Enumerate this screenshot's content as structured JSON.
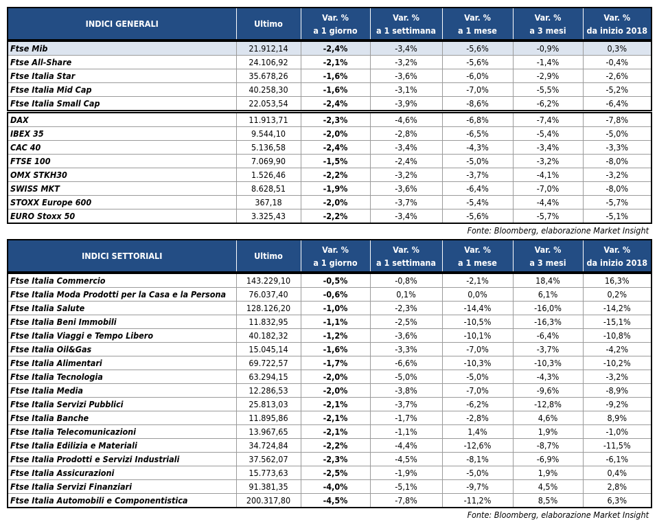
{
  "table1": {
    "header": [
      [
        "INDICI GENERALI"
      ],
      [
        "Ultimo"
      ],
      [
        "Var. %",
        "a 1 giorno"
      ],
      [
        "Var. %",
        "a 1 settimana"
      ],
      [
        "Var. %",
        "a 1 mese"
      ],
      [
        "Var. %",
        "a 3 mesi"
      ],
      [
        "Var. %",
        "da inizio 2018"
      ]
    ],
    "groups": [
      [
        [
          "Ftse Mib",
          "21.912,14",
          "-2,4%",
          "-3,4%",
          "-5,6%",
          "-0,9%",
          "0,3%"
        ],
        [
          "Ftse All-Share",
          "24.106,92",
          "-2,1%",
          "-3,2%",
          "-5,6%",
          "-1,4%",
          "-0,4%"
        ],
        [
          "Ftse Italia Star",
          "35.678,26",
          "-1,6%",
          "-3,6%",
          "-6,0%",
          "-2,9%",
          "-2,6%"
        ],
        [
          "Ftse Italia Mid Cap",
          "40.258,30",
          "-1,6%",
          "-3,1%",
          "-7,0%",
          "-5,5%",
          "-5,2%"
        ],
        [
          "Ftse Italia Small Cap",
          "22.053,54",
          "-2,4%",
          "-3,9%",
          "-8,6%",
          "-6,2%",
          "-6,4%"
        ]
      ],
      [
        [
          "DAX",
          "11.913,71",
          "-2,3%",
          "-4,6%",
          "-6,8%",
          "-7,4%",
          "-7,8%"
        ],
        [
          "IBEX 35",
          "9.544,10",
          "-2,0%",
          "-2,8%",
          "-6,5%",
          "-5,4%",
          "-5,0%"
        ],
        [
          "CAC 40",
          "5.136,58",
          "-2,4%",
          "-3,4%",
          "-4,3%",
          "-3,4%",
          "-3,3%"
        ],
        [
          "FTSE 100",
          "7.069,90",
          "-1,5%",
          "-2,4%",
          "-5,0%",
          "-3,2%",
          "-8,0%"
        ],
        [
          "OMX STKH30",
          "1.526,46",
          "-2,2%",
          "-3,2%",
          "-3,7%",
          "-4,1%",
          "-3,2%"
        ],
        [
          "SWISS MKT",
          "8.628,51",
          "-1,9%",
          "-3,6%",
          "-6,4%",
          "-7,0%",
          "-8,0%"
        ],
        [
          "STOXX Europe 600",
          "367,18",
          "-2,0%",
          "-3,7%",
          "-5,4%",
          "-4,4%",
          "-5,7%"
        ],
        [
          "EURO Stoxx 50",
          "3.325,43",
          "-2,2%",
          "-3,4%",
          "-5,6%",
          "-5,7%",
          "-5,1%"
        ]
      ]
    ],
    "source": "Fonte: Bloomberg, elaborazione Market Insight"
  },
  "table2": {
    "header": [
      [
        "INDICI SETTORIALI"
      ],
      [
        "Ultimo"
      ],
      [
        "Var. %",
        "a 1 giorno"
      ],
      [
        "Var. %",
        "a 1 settimana"
      ],
      [
        "Var. %",
        "a 1 mese"
      ],
      [
        "Var. %",
        "a 3 mesi"
      ],
      [
        "Var. %",
        "da inizio 2018"
      ]
    ],
    "groups": [
      [
        [
          "Ftse Italia Commercio",
          "143.229,10",
          "-0,5%",
          "-0,8%",
          "-2,1%",
          "18,4%",
          "16,3%"
        ],
        [
          "Ftse Italia Moda Prodotti per la Casa e la Persona",
          "76.037,40",
          "-0,6%",
          "0,1%",
          "0,0%",
          "6,1%",
          "0,2%"
        ],
        [
          "Ftse Italia Salute",
          "128.126,20",
          "-1,0%",
          "-2,3%",
          "-14,4%",
          "-16,0%",
          "-14,2%"
        ],
        [
          "Ftse Italia Beni Immobili",
          "11.832,95",
          "-1,1%",
          "-2,5%",
          "-10,5%",
          "-16,3%",
          "-15,1%"
        ],
        [
          "Ftse Italia Viaggi e Tempo Libero",
          "40.182,32",
          "-1,2%",
          "-3,6%",
          "-10,1%",
          "-6,4%",
          "-10,8%"
        ],
        [
          "Ftse Italia Oil&Gas",
          "15.045,14",
          "-1,6%",
          "-3,3%",
          "-7,0%",
          "-3,7%",
          "-4,2%"
        ],
        [
          "Ftse Italia Alimentari",
          "69.722,57",
          "-1,7%",
          "-6,6%",
          "-10,3%",
          "-10,3%",
          "-10,2%"
        ],
        [
          "Ftse Italia Tecnologia",
          "63.294,15",
          "-2,0%",
          "-5,0%",
          "-5,0%",
          "-4,3%",
          "-3,2%"
        ],
        [
          "Ftse Italia Media",
          "12.286,53",
          "-2,0%",
          "-3,8%",
          "-7,0%",
          "-9,6%",
          "-8,9%"
        ],
        [
          "Ftse Italia Servizi Pubblici",
          "25.813,03",
          "-2,1%",
          "-3,7%",
          "-6,2%",
          "-12,8%",
          "-9,2%"
        ],
        [
          "Ftse Italia Banche",
          "11.895,86",
          "-2,1%",
          "-1,7%",
          "-2,8%",
          "4,6%",
          "8,9%"
        ],
        [
          "Ftse Italia Telecomunicazioni",
          "13.967,65",
          "-2,1%",
          "-1,1%",
          "1,4%",
          "1,9%",
          "-1,0%"
        ],
        [
          "Ftse Italia Edilizia e Materiali",
          "34.724,84",
          "-2,2%",
          "-4,4%",
          "-12,6%",
          "-8,7%",
          "-11,5%"
        ],
        [
          "Ftse Italia Prodotti e Servizi Industriali",
          "37.562,07",
          "-2,3%",
          "-4,5%",
          "-8,1%",
          "-6,9%",
          "-6,1%"
        ],
        [
          "Ftse Italia Assicurazioni",
          "15.773,63",
          "-2,5%",
          "-1,9%",
          "-5,0%",
          "1,9%",
          "0,4%"
        ],
        [
          "Ftse Italia Servizi Finanziari",
          "91.381,35",
          "-4,0%",
          "-5,1%",
          "-9,7%",
          "4,5%",
          "2,8%"
        ],
        [
          "Ftse Italia Automobili e Componentistica",
          "200.317,80",
          "-4,5%",
          "-7,8%",
          "-11,2%",
          "8,5%",
          "6,3%"
        ]
      ]
    ],
    "source": "Fonte: Bloomberg, elaborazione Market Insight"
  }
}
